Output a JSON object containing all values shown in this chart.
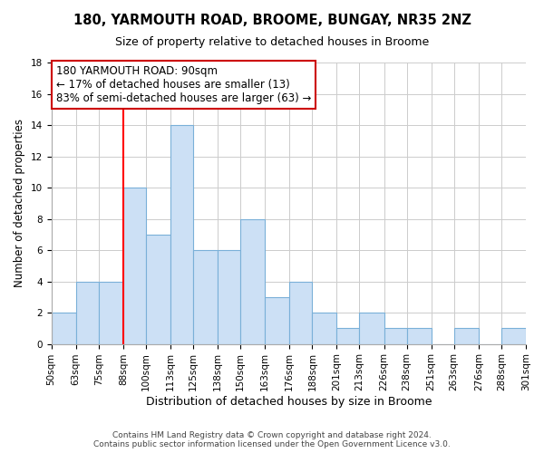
{
  "title1": "180, YARMOUTH ROAD, BROOME, BUNGAY, NR35 2NZ",
  "title2": "Size of property relative to detached houses in Broome",
  "xlabel": "Distribution of detached houses by size in Broome",
  "ylabel": "Number of detached properties",
  "bar_edges": [
    50,
    63,
    75,
    88,
    100,
    113,
    125,
    138,
    150,
    163,
    176,
    188,
    201,
    213,
    226,
    238,
    251,
    263,
    276,
    288,
    301
  ],
  "bar_heights": [
    2,
    4,
    4,
    10,
    7,
    14,
    6,
    6,
    8,
    3,
    4,
    2,
    1,
    2,
    1,
    1,
    0,
    1,
    0,
    1
  ],
  "bar_color": "#cce0f5",
  "bar_edgecolor": "#7ab0d8",
  "redline_x": 88,
  "ylim": [
    0,
    18
  ],
  "yticks": [
    0,
    2,
    4,
    6,
    8,
    10,
    12,
    14,
    16,
    18
  ],
  "annotation_lines": [
    "180 YARMOUTH ROAD: 90sqm",
    "← 17% of detached houses are smaller (13)",
    "83% of semi-detached houses are larger (63) →"
  ],
  "annotation_box_color": "#ffffff",
  "annotation_box_edgecolor": "#cc0000",
  "footer1": "Contains HM Land Registry data © Crown copyright and database right 2024.",
  "footer2": "Contains public sector information licensed under the Open Government Licence v3.0.",
  "background_color": "#ffffff",
  "grid_color": "#cccccc",
  "title1_fontsize": 10.5,
  "title2_fontsize": 9,
  "ylabel_fontsize": 8.5,
  "xlabel_fontsize": 9,
  "tick_fontsize": 7.5,
  "ann_fontsize": 8.5,
  "footer_fontsize": 6.5
}
